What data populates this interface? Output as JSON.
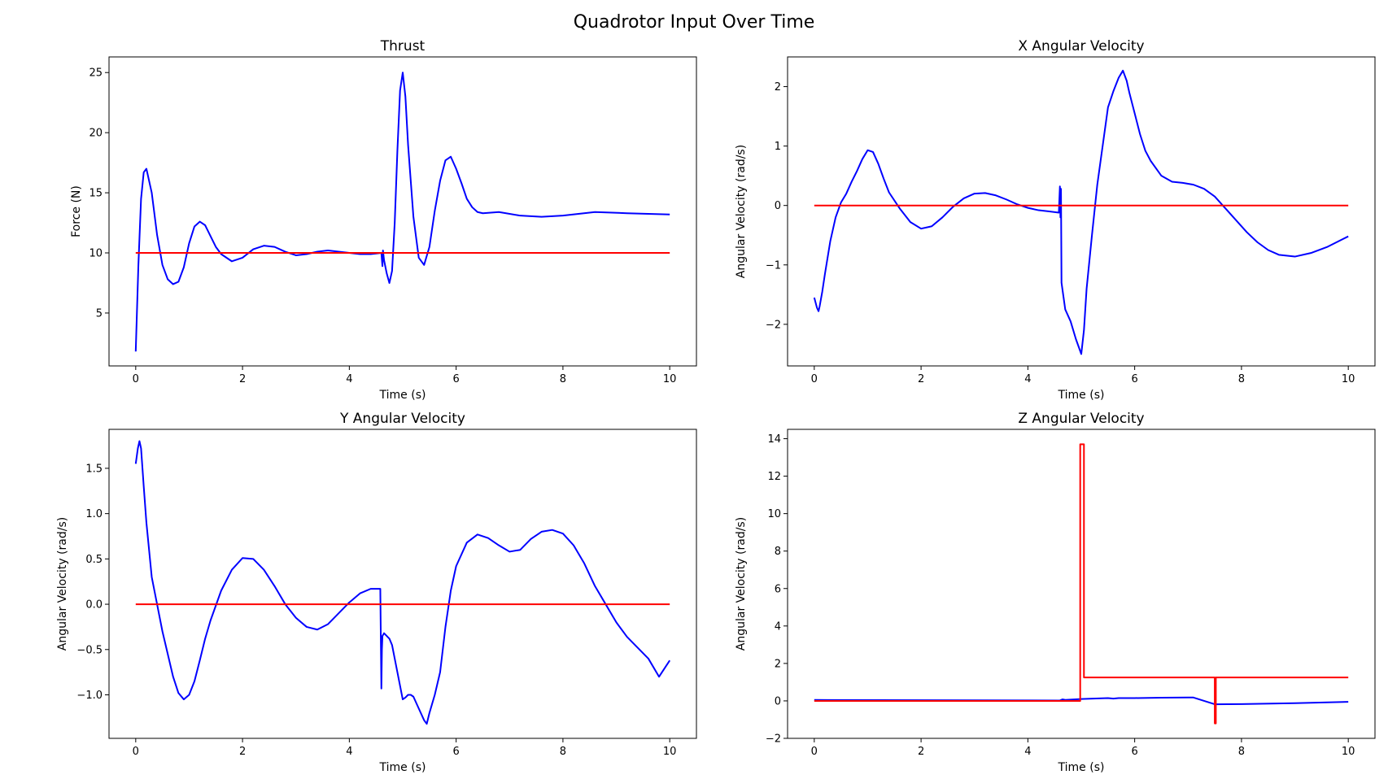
{
  "figure": {
    "title": "Quadrotor Input Over Time"
  },
  "colors": {
    "actual": "#0000ff",
    "reference": "#ff0000"
  },
  "chart_data": [
    {
      "type": "line",
      "title": "Thrust",
      "xlabel": "Time (s)",
      "ylabel": "Force (N)",
      "xlim": [
        -0.5,
        10.5
      ],
      "ylim": [
        0.6,
        26.3
      ],
      "xticks": [
        0,
        2,
        4,
        6,
        8,
        10
      ],
      "xtick_labels": [
        "0",
        "2",
        "4",
        "6",
        "8",
        "10"
      ],
      "yticks": [
        5,
        10,
        15,
        20,
        25
      ],
      "ytick_labels": [
        "5",
        "10",
        "15",
        "20",
        "25"
      ],
      "series": [
        {
          "color": "#0000ff",
          "x": [
            0,
            0.05,
            0.1,
            0.15,
            0.2,
            0.3,
            0.4,
            0.5,
            0.6,
            0.7,
            0.8,
            0.9,
            1.0,
            1.1,
            1.2,
            1.3,
            1.4,
            1.5,
            1.6,
            1.8,
            2.0,
            2.2,
            2.4,
            2.6,
            2.8,
            3.0,
            3.2,
            3.4,
            3.6,
            3.8,
            4.0,
            4.2,
            4.4,
            4.6,
            4.62,
            4.63,
            4.65,
            4.7,
            4.75,
            4.8,
            4.85,
            4.9,
            4.95,
            5.0,
            5.05,
            5.1,
            5.2,
            5.3,
            5.4,
            5.5,
            5.6,
            5.7,
            5.8,
            5.9,
            6.0,
            6.1,
            6.2,
            6.3,
            6.4,
            6.5,
            6.8,
            7.2,
            7.6,
            8.0,
            8.6,
            9.2,
            10.0
          ],
          "y": [
            1.8,
            9.0,
            14.5,
            16.7,
            17.0,
            15.0,
            11.5,
            9.0,
            7.8,
            7.4,
            7.6,
            8.8,
            10.8,
            12.2,
            12.6,
            12.3,
            11.4,
            10.5,
            9.9,
            9.3,
            9.6,
            10.3,
            10.6,
            10.5,
            10.1,
            9.8,
            9.9,
            10.1,
            10.2,
            10.1,
            10.0,
            9.9,
            9.9,
            10.0,
            8.9,
            10.2,
            9.4,
            8.3,
            7.5,
            8.5,
            12.5,
            18.5,
            23.5,
            25.0,
            23.0,
            19.0,
            13.0,
            9.6,
            9.0,
            10.5,
            13.5,
            16.0,
            17.7,
            18.0,
            17.0,
            15.8,
            14.5,
            13.8,
            13.4,
            13.3,
            13.4,
            13.1,
            13.0,
            13.1,
            13.4,
            13.3,
            13.2
          ]
        },
        {
          "color": "#ff0000",
          "x": [
            0,
            10
          ],
          "y": [
            10,
            10
          ]
        }
      ]
    },
    {
      "type": "line",
      "title": "X Angular Velocity",
      "xlabel": "Time (s)",
      "ylabel": "Angular Velocity (rad/s)",
      "xlim": [
        -0.5,
        10.5
      ],
      "ylim": [
        -2.7,
        2.5
      ],
      "xticks": [
        0,
        2,
        4,
        6,
        8,
        10
      ],
      "xtick_labels": [
        "0",
        "2",
        "4",
        "6",
        "8",
        "10"
      ],
      "yticks": [
        -2,
        -1,
        0,
        1,
        2
      ],
      "ytick_labels": [
        "−2",
        "−1",
        "0",
        "1",
        "2"
      ],
      "series": [
        {
          "color": "#0000ff",
          "x": [
            0,
            0.05,
            0.08,
            0.1,
            0.15,
            0.2,
            0.3,
            0.4,
            0.5,
            0.6,
            0.7,
            0.8,
            0.9,
            1.0,
            1.1,
            1.2,
            1.3,
            1.4,
            1.6,
            1.8,
            2.0,
            2.2,
            2.4,
            2.6,
            2.8,
            3.0,
            3.2,
            3.4,
            3.6,
            3.8,
            4.0,
            4.2,
            4.4,
            4.58,
            4.6,
            4.61,
            4.62,
            4.63,
            4.7,
            4.8,
            4.9,
            5.0,
            5.05,
            5.1,
            5.2,
            5.3,
            5.4,
            5.5,
            5.6,
            5.7,
            5.78,
            5.85,
            5.9,
            6.0,
            6.1,
            6.2,
            6.3,
            6.5,
            6.7,
            6.9,
            7.1,
            7.3,
            7.5,
            7.7,
            7.9,
            8.1,
            8.3,
            8.5,
            8.7,
            9.0,
            9.3,
            9.6,
            10.0
          ],
          "y": [
            -1.55,
            -1.72,
            -1.78,
            -1.7,
            -1.45,
            -1.15,
            -0.6,
            -0.2,
            0.05,
            0.2,
            0.4,
            0.58,
            0.78,
            0.93,
            0.9,
            0.7,
            0.45,
            0.22,
            -0.05,
            -0.28,
            -0.39,
            -0.35,
            -0.2,
            -0.02,
            0.12,
            0.2,
            0.21,
            0.17,
            0.1,
            0.02,
            -0.04,
            -0.08,
            -0.1,
            -0.12,
            0.32,
            -0.2,
            0.28,
            -1.3,
            -1.75,
            -1.95,
            -2.25,
            -2.5,
            -2.1,
            -1.4,
            -0.5,
            0.35,
            1.0,
            1.65,
            1.92,
            2.15,
            2.27,
            2.1,
            1.9,
            1.55,
            1.2,
            0.92,
            0.75,
            0.5,
            0.4,
            0.38,
            0.35,
            0.28,
            0.15,
            -0.05,
            -0.25,
            -0.45,
            -0.62,
            -0.75,
            -0.83,
            -0.86,
            -0.8,
            -0.7,
            -0.52
          ]
        },
        {
          "color": "#ff0000",
          "x": [
            0,
            10
          ],
          "y": [
            0,
            0
          ]
        }
      ]
    },
    {
      "type": "line",
      "title": "Y Angular Velocity",
      "xlabel": "Time (s)",
      "ylabel": "Angular Velocity (rad/s)",
      "xlim": [
        -0.5,
        10.5
      ],
      "ylim": [
        -1.48,
        1.93
      ],
      "xticks": [
        0,
        2,
        4,
        6,
        8,
        10
      ],
      "xtick_labels": [
        "0",
        "2",
        "4",
        "6",
        "8",
        "10"
      ],
      "yticks": [
        -1.0,
        -0.5,
        0.0,
        0.5,
        1.0,
        1.5
      ],
      "ytick_labels": [
        "−1.0",
        "−0.5",
        "0.0",
        "0.5",
        "1.0",
        "1.5"
      ],
      "series": [
        {
          "color": "#0000ff",
          "x": [
            0,
            0.04,
            0.07,
            0.1,
            0.15,
            0.2,
            0.3,
            0.4,
            0.5,
            0.6,
            0.7,
            0.8,
            0.9,
            1.0,
            1.1,
            1.2,
            1.3,
            1.4,
            1.6,
            1.8,
            2.0,
            2.2,
            2.4,
            2.6,
            2.8,
            3.0,
            3.2,
            3.4,
            3.6,
            3.8,
            4.0,
            4.2,
            4.4,
            4.58,
            4.6,
            4.61,
            4.62,
            4.65,
            4.7,
            4.75,
            4.8,
            4.85,
            4.9,
            5.0,
            5.05,
            5.1,
            5.15,
            5.2,
            5.3,
            5.4,
            5.45,
            5.5,
            5.6,
            5.7,
            5.8,
            5.9,
            6.0,
            6.2,
            6.4,
            6.6,
            6.8,
            7.0,
            7.2,
            7.4,
            7.6,
            7.8,
            8.0,
            8.2,
            8.4,
            8.6,
            8.8,
            9.0,
            9.2,
            9.4,
            9.6,
            9.8,
            10.0
          ],
          "y": [
            1.55,
            1.72,
            1.8,
            1.72,
            1.3,
            0.9,
            0.3,
            0.0,
            -0.3,
            -0.55,
            -0.8,
            -0.98,
            -1.05,
            -1.0,
            -0.85,
            -0.62,
            -0.38,
            -0.18,
            0.15,
            0.38,
            0.51,
            0.5,
            0.38,
            0.2,
            0.0,
            -0.15,
            -0.25,
            -0.28,
            -0.22,
            -0.1,
            0.02,
            0.12,
            0.17,
            0.17,
            -0.93,
            -0.5,
            -0.35,
            -0.32,
            -0.35,
            -0.38,
            -0.45,
            -0.6,
            -0.75,
            -1.05,
            -1.03,
            -1.0,
            -1.0,
            -1.02,
            -1.15,
            -1.28,
            -1.32,
            -1.2,
            -1.0,
            -0.75,
            -0.25,
            0.15,
            0.42,
            0.68,
            0.77,
            0.73,
            0.65,
            0.58,
            0.6,
            0.72,
            0.8,
            0.82,
            0.78,
            0.65,
            0.45,
            0.2,
            0.0,
            -0.2,
            -0.36,
            -0.48,
            -0.6,
            -0.8,
            -0.62
          ]
        },
        {
          "color": "#ff0000",
          "x": [
            0,
            10
          ],
          "y": [
            0,
            0
          ]
        }
      ]
    },
    {
      "type": "line",
      "title": "Z Angular Velocity",
      "xlabel": "Time (s)",
      "ylabel": "Angular Velocity (rad/s)",
      "xlim": [
        -0.5,
        10.5
      ],
      "ylim": [
        -2.0,
        14.5
      ],
      "xticks": [
        0,
        2,
        4,
        6,
        8,
        10
      ],
      "xtick_labels": [
        "0",
        "2",
        "4",
        "6",
        "8",
        "10"
      ],
      "yticks": [
        -2,
        0,
        2,
        4,
        6,
        8,
        10,
        12,
        14
      ],
      "ytick_labels": [
        "−2",
        "0",
        "2",
        "4",
        "6",
        "8",
        "10",
        "12",
        "14"
      ],
      "series": [
        {
          "color": "#0000ff",
          "x": [
            0,
            4.6,
            4.65,
            4.7,
            5.0,
            5.5,
            5.6,
            5.7,
            6.0,
            6.5,
            7.0,
            7.1,
            7.5,
            8.0,
            9.0,
            10.0
          ],
          "y": [
            0.05,
            0.02,
            0.08,
            0.05,
            0.1,
            0.15,
            0.12,
            0.15,
            0.15,
            0.17,
            0.18,
            0.18,
            -0.18,
            -0.17,
            -0.12,
            -0.05
          ]
        },
        {
          "color": "#ff0000",
          "x": [
            0,
            4.98,
            4.98,
            5.05,
            5.05,
            7.5,
            7.5,
            7.52,
            7.52,
            10.0
          ],
          "y": [
            0,
            0,
            13.7,
            13.7,
            1.25,
            1.25,
            -1.2,
            -1.2,
            1.25,
            1.25
          ]
        }
      ]
    }
  ]
}
